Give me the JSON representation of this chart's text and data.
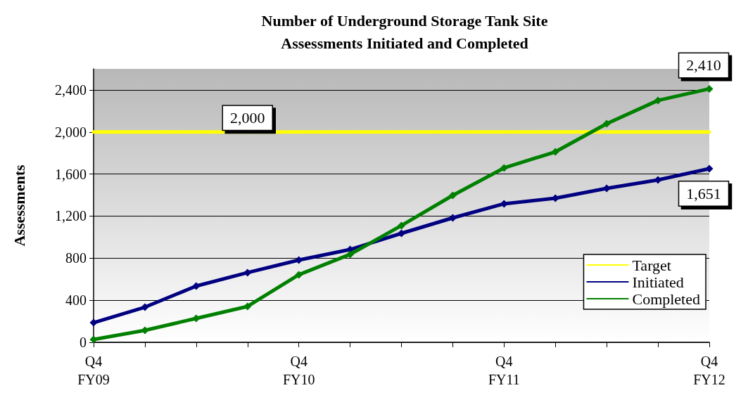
{
  "chart_data": {
    "type": "line",
    "title": "Number of Underground Storage Tank Site\nAssessments Initiated and Completed",
    "ylabel": "Assessments",
    "categories": [
      "Q4\nFY09",
      null,
      null,
      null,
      "Q4\nFY10",
      null,
      null,
      null,
      "Q4\nFY11",
      null,
      null,
      null,
      "Q4\nFY12"
    ],
    "series": [
      {
        "name": "Target",
        "color": "#ffff00",
        "marker": "none",
        "values": [
          2000,
          2000,
          2000,
          2000,
          2000,
          2000,
          2000,
          2000,
          2000,
          2000,
          2000,
          2000,
          2000
        ],
        "value_labels": [
          null,
          null,
          null,
          "2,000",
          null,
          null,
          null,
          null,
          null,
          null,
          null,
          null,
          null
        ]
      },
      {
        "name": "Initiated",
        "color": "#000080",
        "values": [
          187,
          334,
          535,
          662,
          782,
          882,
          1036,
          1183,
          1317,
          1370,
          1464,
          1544,
          1651
        ],
        "value_labels": [
          null,
          null,
          null,
          null,
          null,
          null,
          null,
          null,
          null,
          null,
          null,
          null,
          "1,651"
        ]
      },
      {
        "name": "Completed",
        "color": "#008000",
        "values": [
          27,
          114,
          227,
          341,
          642,
          836,
          1110,
          1397,
          1658,
          1811,
          2079,
          2300,
          2410
        ],
        "value_labels": [
          null,
          null,
          null,
          null,
          null,
          null,
          null,
          null,
          null,
          null,
          null,
          null,
          "2,410"
        ]
      }
    ],
    "ylim": [
      0,
      2600
    ],
    "yticks": [
      0,
      400,
      800,
      {
        "value": 1200,
        "label": "1,200"
      },
      {
        "value": 1600,
        "label": "1,600"
      },
      {
        "value": 2000,
        "label": "2,000"
      },
      {
        "value": 2400,
        "label": "2,400"
      }
    ],
    "grid": "y",
    "legend": "bottom right",
    "marker": "diamond",
    "line_style": "solid"
  }
}
